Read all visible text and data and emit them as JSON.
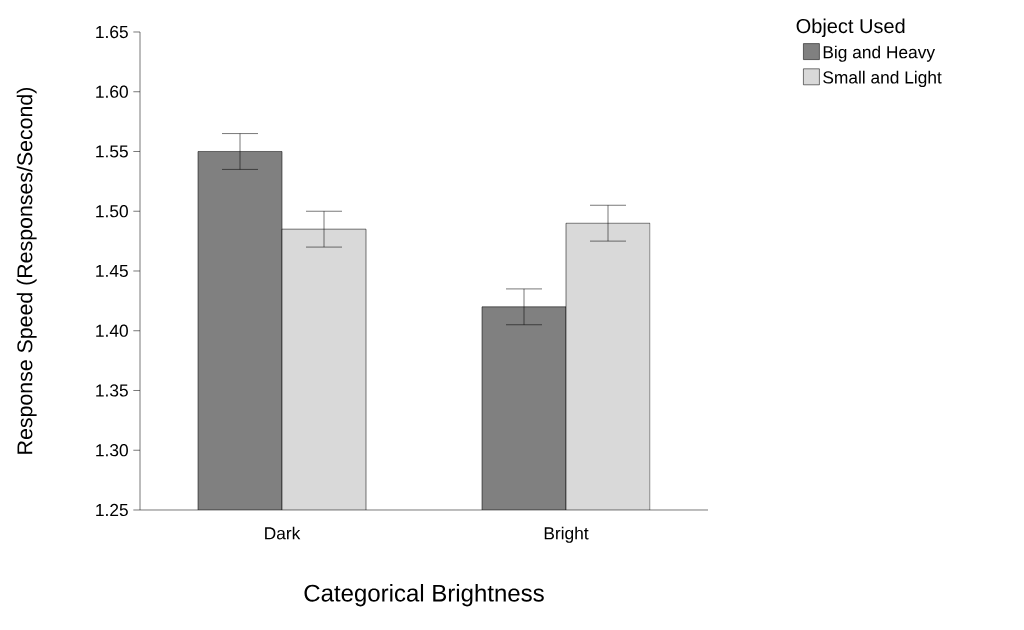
{
  "chart_data": {
    "type": "bar",
    "xlabel": "Categorical Brightness",
    "ylabel": "Response Speed (Responses/Second)",
    "legend_title": "Object Used",
    "categories": [
      "Dark",
      "Bright"
    ],
    "series": [
      {
        "name": "Big and Heavy",
        "color": "#808080",
        "values": [
          1.55,
          1.42
        ],
        "errors": [
          0.015,
          0.015
        ]
      },
      {
        "name": "Small and Light",
        "color": "#d9d9d9",
        "values": [
          1.485,
          1.49
        ],
        "errors": [
          0.015,
          0.015
        ]
      }
    ],
    "ylim": [
      1.25,
      1.65
    ],
    "yticks": [
      1.25,
      {
        "value": 1.3,
        "label": "1.30"
      },
      1.35,
      {
        "value": 1.4,
        "label": "1.40"
      },
      1.45,
      {
        "value": 1.5,
        "label": "1.50"
      },
      1.55,
      {
        "value": 1.6,
        "label": "1.60"
      },
      1.65
    ],
    "legend": "top right",
    "grid": false
  }
}
